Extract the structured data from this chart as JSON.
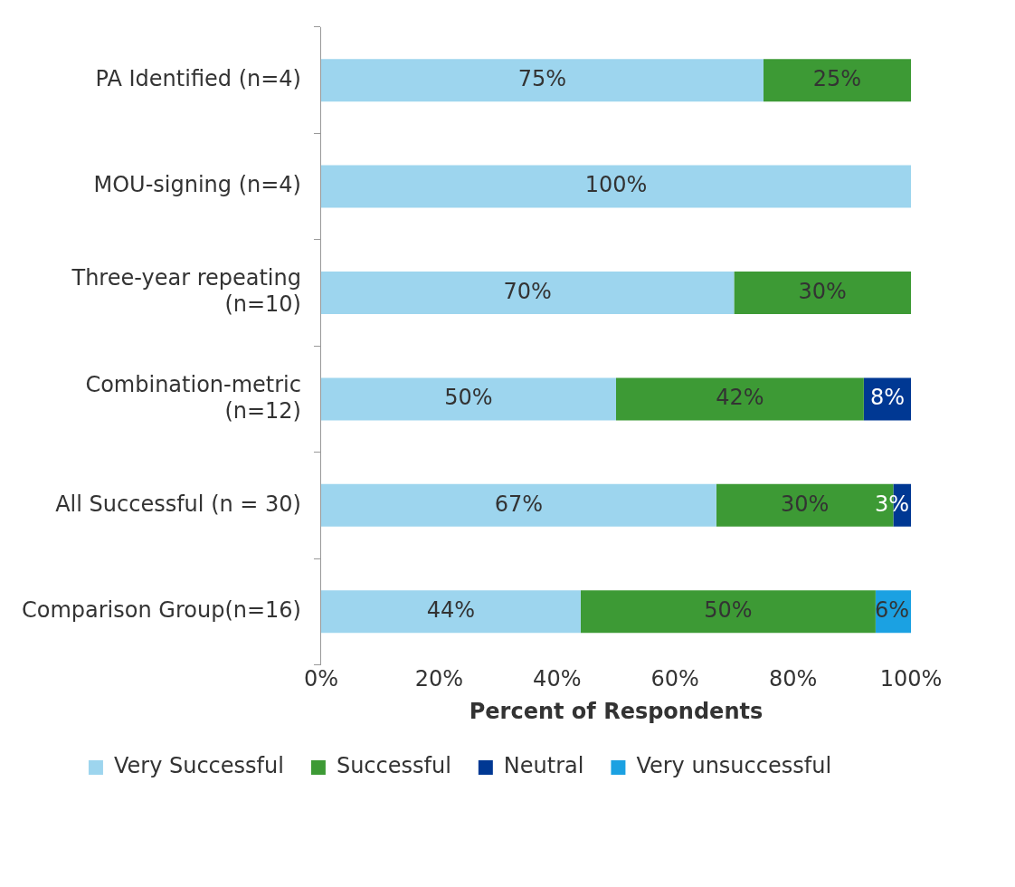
{
  "chart_data": {
    "type": "bar",
    "orientation": "horizontal",
    "stacked": true,
    "categories": [
      "PA Identified (n=4)",
      "MOU-signing (n=4)",
      "Three-year repeating (n=10)",
      "Combination-metric (n=12)",
      "All Successful (n = 30)",
      "Comparison Group(n=16)"
    ],
    "series": [
      {
        "name": "Very Successful",
        "color": "#9dd5ee",
        "values": [
          75,
          100,
          70,
          50,
          67,
          44
        ],
        "value_labels": [
          "75%",
          "100%",
          "70%",
          "50%",
          "67%",
          "44%"
        ]
      },
      {
        "name": "Successful",
        "color": "#3d9a35",
        "values": [
          25,
          null,
          30,
          42,
          30,
          50
        ],
        "value_labels": [
          "25%",
          null,
          "30%",
          "42%",
          "30%",
          "50%"
        ]
      },
      {
        "name": "Neutral",
        "color": "#003893",
        "values": [
          null,
          null,
          null,
          8,
          3,
          null
        ],
        "value_labels": [
          null,
          null,
          null,
          "8%",
          "3%",
          null
        ]
      },
      {
        "name": "Very unsuccessful",
        "color": "#1ba1e2",
        "values": [
          null,
          null,
          null,
          null,
          null,
          6
        ],
        "value_labels": [
          null,
          null,
          null,
          null,
          null,
          "6%"
        ]
      }
    ],
    "xlim": [
      0,
      100
    ],
    "xticks": [
      {
        "value": 0,
        "label": "0%"
      },
      {
        "value": 20,
        "label": "20%"
      },
      {
        "value": 40,
        "label": "40%"
      },
      {
        "value": 60,
        "label": "60%"
      },
      {
        "value": 80,
        "label": "80%"
      },
      {
        "value": 100,
        "label": "100%"
      }
    ],
    "xlabel": "Percent of Respondents",
    "grid": false,
    "legend": "bottom"
  }
}
